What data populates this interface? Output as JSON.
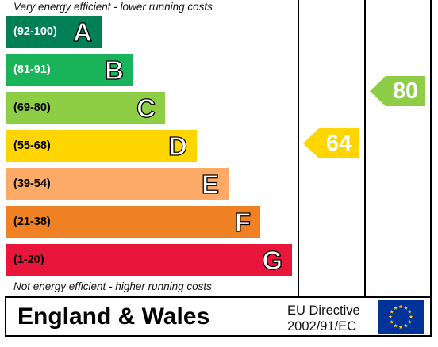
{
  "chart_data": {
    "type": "bar",
    "top_note": "Very energy efficient - lower running costs",
    "bottom_note": "Not energy efficient - higher running costs",
    "bands": [
      {
        "letter": "A",
        "range": "(92-100)",
        "min": 92,
        "max": 100,
        "color": "#008054",
        "range_color": "#ffffff"
      },
      {
        "letter": "B",
        "range": "(81-91)",
        "min": 81,
        "max": 91,
        "color": "#19b459",
        "range_color": "#ffffff"
      },
      {
        "letter": "C",
        "range": "(69-80)",
        "min": 69,
        "max": 80,
        "color": "#8dce46",
        "range_color": "#000000"
      },
      {
        "letter": "D",
        "range": "(55-68)",
        "min": 55,
        "max": 68,
        "color": "#ffd500",
        "range_color": "#000000"
      },
      {
        "letter": "E",
        "range": "(39-54)",
        "min": 39,
        "max": 54,
        "color": "#fcaa65",
        "range_color": "#000000"
      },
      {
        "letter": "F",
        "range": "(21-38)",
        "min": 21,
        "max": 38,
        "color": "#ef8023",
        "range_color": "#000000"
      },
      {
        "letter": "G",
        "range": "(1-20)",
        "min": 1,
        "max": 20,
        "color": "#e9153b",
        "range_color": "#000000"
      }
    ],
    "current": {
      "value": "64",
      "band": "D",
      "color": "#ffd500"
    },
    "potential": {
      "value": "80",
      "band": "C",
      "color": "#8dce46"
    }
  },
  "footer": {
    "region": "England & Wales",
    "directive_line1": "EU Directive",
    "directive_line2": "2002/91/EC",
    "flag_color": "#003399",
    "star_color": "#ffcc00"
  }
}
